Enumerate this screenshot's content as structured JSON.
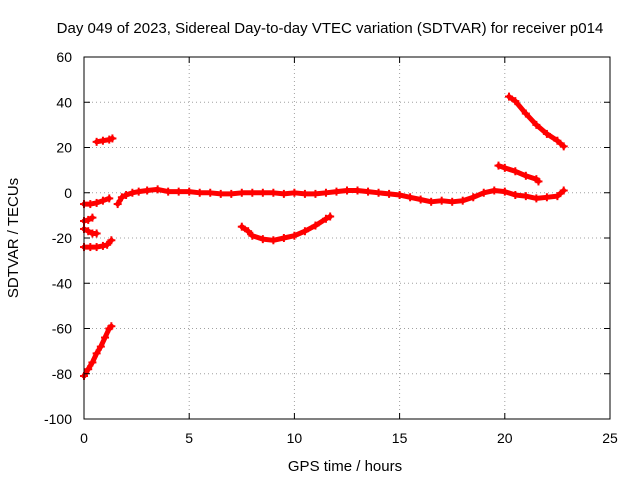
{
  "chart_data": {
    "type": "scatter",
    "title": "Day 049 of 2023, Sidereal Day-to-day VTEC variation (SDTVAR) for receiver p014",
    "xlabel": "GPS time / hours",
    "ylabel": "SDTVAR / TECUs",
    "xlim": [
      0,
      25
    ],
    "ylim": [
      -100,
      60
    ],
    "xticks": [
      0,
      5,
      10,
      15,
      20,
      25
    ],
    "yticks": [
      -100,
      -80,
      -60,
      -40,
      -20,
      0,
      20,
      40,
      60
    ],
    "grid": true,
    "legend": "none",
    "series_color": "#ff0000",
    "series": [
      {
        "name": "arc-1",
        "points": [
          [
            0.0,
            -81
          ],
          [
            0.2,
            -78
          ],
          [
            0.4,
            -75
          ],
          [
            0.6,
            -71
          ],
          [
            0.8,
            -68
          ],
          [
            1.0,
            -64
          ],
          [
            1.2,
            -60
          ],
          [
            1.3,
            -59
          ]
        ]
      },
      {
        "name": "arc-2",
        "points": [
          [
            0.0,
            -24
          ],
          [
            0.3,
            -24
          ],
          [
            0.6,
            -24
          ],
          [
            0.9,
            -23.5
          ],
          [
            1.1,
            -23
          ],
          [
            1.3,
            -21
          ]
        ]
      },
      {
        "name": "arc-3",
        "points": [
          [
            0.0,
            -16
          ],
          [
            0.2,
            -17
          ],
          [
            0.4,
            -18
          ],
          [
            0.6,
            -18
          ]
        ]
      },
      {
        "name": "arc-4",
        "points": [
          [
            0.0,
            -12.5
          ],
          [
            0.2,
            -12
          ],
          [
            0.4,
            -11
          ]
        ]
      },
      {
        "name": "arc-5",
        "points": [
          [
            0.0,
            -5
          ],
          [
            0.3,
            -5
          ],
          [
            0.6,
            -4.5
          ],
          [
            0.9,
            -3.5
          ],
          [
            1.2,
            -2.5
          ]
        ]
      },
      {
        "name": "arc-6",
        "points": [
          [
            0.6,
            22.5
          ],
          [
            0.9,
            23
          ],
          [
            1.2,
            23.5
          ],
          [
            1.35,
            24
          ]
        ]
      },
      {
        "name": "arc-7",
        "points": [
          [
            1.6,
            -5
          ],
          [
            1.8,
            -2
          ],
          [
            2.0,
            -1
          ],
          [
            2.3,
            0
          ],
          [
            2.6,
            0.5
          ],
          [
            3.0,
            1
          ],
          [
            3.5,
            1.5
          ],
          [
            4.0,
            0.5
          ],
          [
            4.5,
            0.5
          ],
          [
            5.0,
            0.5
          ],
          [
            5.5,
            0
          ],
          [
            6.0,
            0
          ],
          [
            6.5,
            -0.5
          ],
          [
            7.0,
            -0.5
          ],
          [
            7.5,
            0
          ],
          [
            8.0,
            0
          ],
          [
            8.5,
            0
          ],
          [
            9.0,
            0
          ],
          [
            9.5,
            -0.5
          ],
          [
            10.0,
            0
          ],
          [
            10.5,
            -0.5
          ],
          [
            11.0,
            -0.5
          ],
          [
            11.5,
            0
          ],
          [
            12.0,
            0.5
          ],
          [
            12.5,
            1
          ],
          [
            13.0,
            1
          ],
          [
            13.5,
            0.5
          ],
          [
            14.0,
            0
          ],
          [
            14.5,
            -0.5
          ],
          [
            15.0,
            -1
          ],
          [
            15.5,
            -2
          ],
          [
            16.0,
            -3
          ],
          [
            16.5,
            -4
          ],
          [
            17.0,
            -3.5
          ],
          [
            17.5,
            -4
          ],
          [
            18.0,
            -3.5
          ],
          [
            18.5,
            -2
          ],
          [
            19.0,
            0
          ],
          [
            19.5,
            1
          ],
          [
            20.0,
            0.5
          ],
          [
            20.5,
            -1
          ],
          [
            21.0,
            -1.5
          ],
          [
            21.5,
            -2.5
          ],
          [
            22.0,
            -2
          ],
          [
            22.5,
            -1.5
          ],
          [
            22.8,
            1
          ]
        ]
      },
      {
        "name": "arc-8",
        "points": [
          [
            7.5,
            -15
          ],
          [
            7.8,
            -17
          ],
          [
            8.0,
            -19
          ],
          [
            8.5,
            -20.5
          ],
          [
            9.0,
            -21
          ],
          [
            9.5,
            -20
          ],
          [
            10.0,
            -19
          ],
          [
            10.5,
            -17
          ],
          [
            11.0,
            -14.5
          ],
          [
            11.5,
            -11.5
          ],
          [
            11.7,
            -10.5
          ]
        ]
      },
      {
        "name": "arc-9",
        "points": [
          [
            19.7,
            12
          ],
          [
            20.0,
            11
          ],
          [
            20.5,
            9.5
          ],
          [
            21.0,
            7.5
          ],
          [
            21.5,
            6
          ],
          [
            21.6,
            5
          ]
        ]
      },
      {
        "name": "arc-10",
        "points": [
          [
            20.2,
            42.5
          ],
          [
            20.5,
            40.5
          ],
          [
            21.0,
            35
          ],
          [
            21.5,
            30
          ],
          [
            22.0,
            26
          ],
          [
            22.5,
            23
          ],
          [
            22.8,
            20.5
          ]
        ]
      }
    ]
  }
}
